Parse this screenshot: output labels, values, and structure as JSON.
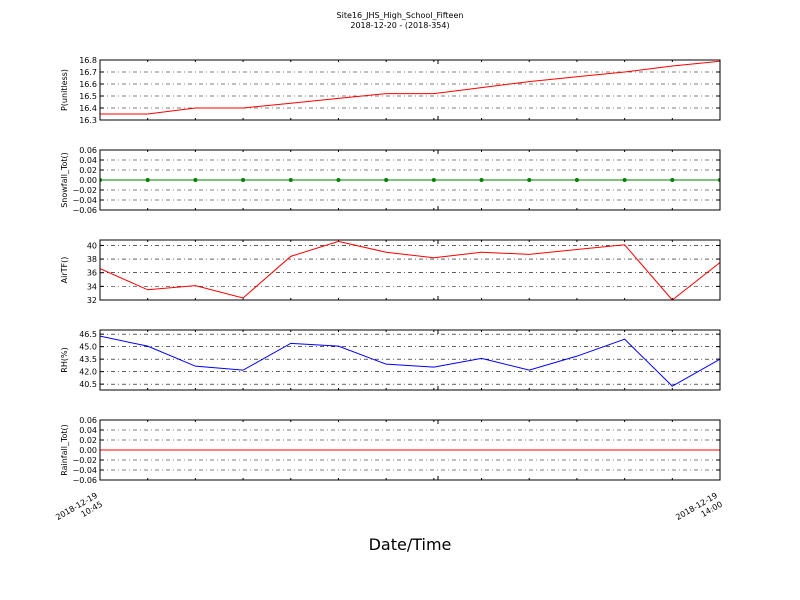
{
  "figure": {
    "title": "Site16_JHS_High_School_Fifteen",
    "subtitle": "2018-12-20 - (2018-354)",
    "xlabel": "Date/Time",
    "x": [
      "2018-12-19 10:45",
      "2018-12-19 11:00",
      "2018-12-19 11:15",
      "2018-12-19 11:30",
      "2018-12-19 11:45",
      "2018-12-19 12:00",
      "2018-12-19 12:15",
      "2018-12-19 12:30",
      "2018-12-19 12:45",
      "2018-12-19 13:00",
      "2018-12-19 13:15",
      "2018-12-19 13:30",
      "2018-12-19 13:45",
      "2018-12-19 14:00"
    ],
    "xticks": [
      "2018-12-19 10:45",
      "2018-12-19 14:00"
    ]
  },
  "chart_data": [
    {
      "type": "line",
      "ylabel": "P(unitless)",
      "ylim": [
        16.3,
        16.8
      ],
      "yticks": [
        16.3,
        16.4,
        16.5,
        16.6,
        16.7,
        16.8
      ],
      "grid": true,
      "series": [
        {
          "name": "P",
          "color": "#ff0000",
          "marker": false,
          "values": [
            16.35,
            16.35,
            16.4,
            16.4,
            16.44,
            16.48,
            16.52,
            16.52,
            16.57,
            16.62,
            16.66,
            16.7,
            16.75,
            16.79
          ]
        }
      ]
    },
    {
      "type": "line",
      "ylabel": "Snowfall_Tot()",
      "ylim": [
        -0.06,
        0.06
      ],
      "yticks": [
        {
          "value": -0.06,
          "label": "−0.06"
        },
        {
          "value": -0.04,
          "label": "−0.04"
        },
        {
          "value": -0.02,
          "label": "−0.02"
        },
        {
          "value": 0,
          "label": "0.00"
        },
        0.02,
        0.04,
        0.06
      ],
      "grid": true,
      "series": [
        {
          "name": "Snowfall_Tot",
          "color": "#008000",
          "marker": true,
          "values": [
            0,
            0,
            0,
            0,
            0,
            0,
            0,
            0,
            0,
            0,
            0,
            0,
            0,
            0
          ]
        }
      ]
    },
    {
      "type": "line",
      "ylabel": "AirTF()",
      "ylim": [
        32,
        40.8
      ],
      "yticks": [
        32,
        34,
        36,
        38,
        40
      ],
      "grid": true,
      "series": [
        {
          "name": "AirTF",
          "color": "#ff0000",
          "marker": false,
          "values": [
            36.6,
            33.5,
            34.1,
            32.3,
            38.4,
            40.6,
            39.0,
            38.2,
            39.0,
            38.7,
            39.4,
            40.1,
            32.0,
            37.5
          ]
        }
      ]
    },
    {
      "type": "line",
      "ylabel": "RH(%)",
      "ylim": [
        39.8,
        47.0
      ],
      "yticks": [
        40.5,
        {
          "value": 42,
          "label": "42.0"
        },
        43.5,
        {
          "value": 45,
          "label": "45.0"
        },
        46.5
      ],
      "grid": true,
      "series": [
        {
          "name": "RH",
          "color": "#0000ff",
          "marker": false,
          "values": [
            46.26,
            45.06,
            42.66,
            42.18,
            45.4,
            45.06,
            42.9,
            42.54,
            43.6,
            42.18,
            43.86,
            45.9,
            40.26,
            43.5
          ]
        }
      ]
    },
    {
      "type": "line",
      "ylabel": "Rainfall_Tot()",
      "ylim": [
        -0.06,
        0.06
      ],
      "yticks": [
        {
          "value": -0.06,
          "label": "−0.06"
        },
        {
          "value": -0.04,
          "label": "−0.04"
        },
        {
          "value": -0.02,
          "label": "−0.02"
        },
        {
          "value": 0,
          "label": "0.00"
        },
        0.02,
        0.04,
        0.06
      ],
      "grid": true,
      "series": [
        {
          "name": "Rainfall_Tot",
          "color": "#ff0000",
          "marker": false,
          "values": [
            0,
            0,
            0,
            0,
            0,
            0,
            0,
            0,
            0,
            0,
            0,
            0,
            0,
            0
          ]
        }
      ]
    }
  ]
}
